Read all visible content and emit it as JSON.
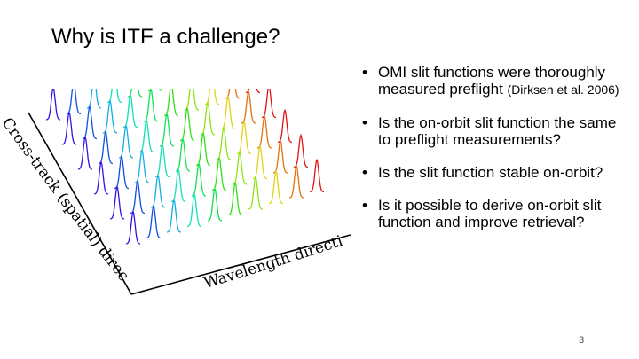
{
  "slide": {
    "title": "Why is ITF a challenge?",
    "page_number": "3"
  },
  "figure": {
    "cross_track_label": "Cross-track (spatial) direction",
    "wavelength_label": "Wavelength direction"
  },
  "bullets": [
    {
      "text": "OMI slit functions were thoroughly measured preflight ",
      "citation": "(Dirksen et al. 2006)"
    },
    {
      "text": "Is the on-orbit slit function the same to preflight measurements?"
    },
    {
      "text": "Is the slit function stable on-orbit?"
    },
    {
      "text": "Is it possible to derive on-orbit slit function and improve retrieval?"
    }
  ]
}
